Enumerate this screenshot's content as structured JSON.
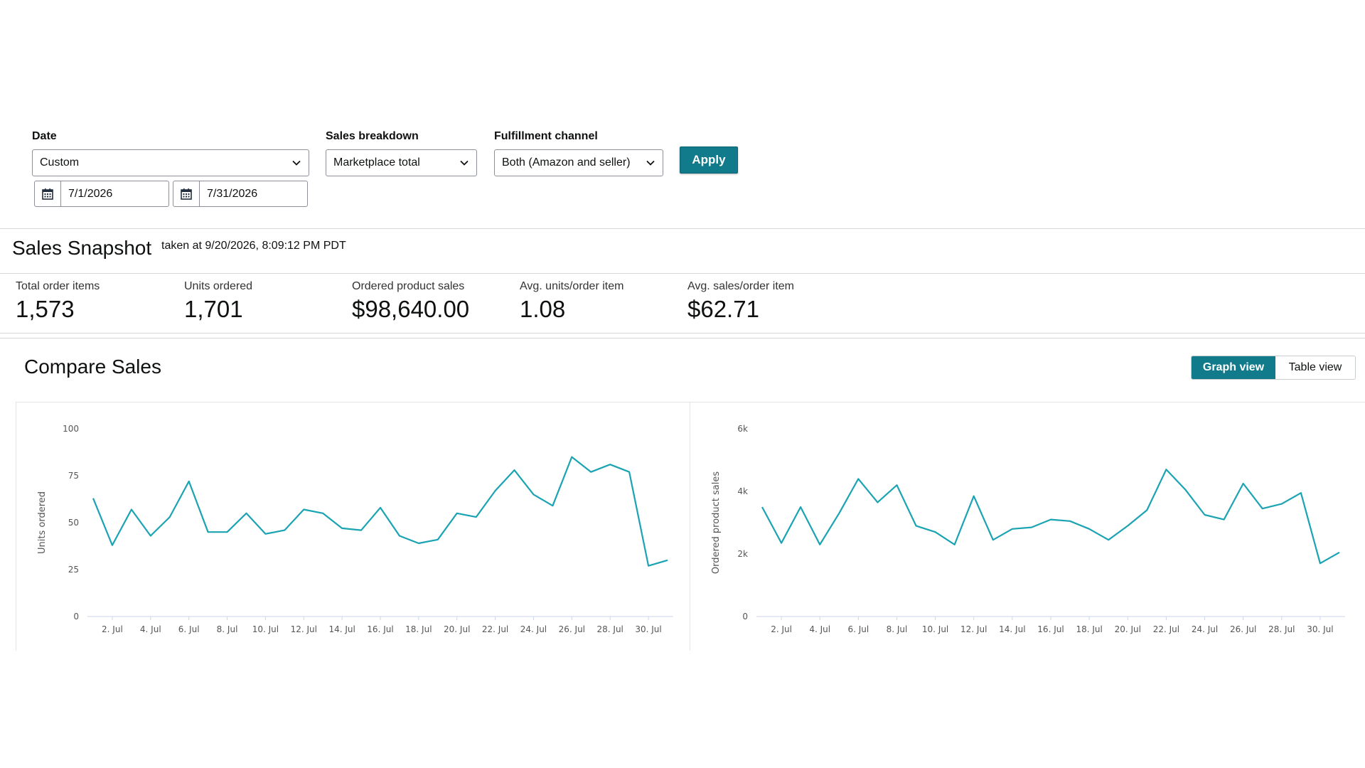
{
  "filters": {
    "date": {
      "label": "Date",
      "selected": "Custom",
      "start": "7/1/2026",
      "end": "7/31/2026"
    },
    "sales_breakdown": {
      "label": "Sales breakdown",
      "selected": "Marketplace total"
    },
    "fulfillment_channel": {
      "label": "Fulfillment channel",
      "selected": "Both (Amazon and seller)"
    },
    "apply_label": "Apply"
  },
  "snapshot": {
    "title": "Sales Snapshot",
    "taken_at": "taken at 9/20/2026, 8:09:12 PM PDT",
    "metrics": [
      {
        "label": "Total order items",
        "value": "1,573"
      },
      {
        "label": "Units ordered",
        "value": "1,701"
      },
      {
        "label": "Ordered product sales",
        "value": "$98,640.00"
      },
      {
        "label": "Avg. units/order item",
        "value": "1.08"
      },
      {
        "label": "Avg. sales/order item",
        "value": "$62.71"
      }
    ]
  },
  "compare": {
    "title": "Compare Sales",
    "views": {
      "graph": "Graph view",
      "table": "Table view",
      "active": "graph"
    }
  },
  "colors": {
    "accent": "#117a8b",
    "line": "#1aa3b3"
  },
  "chart_data": [
    {
      "type": "line",
      "ylabel": "Units ordered",
      "ylim": [
        0,
        100
      ],
      "yticks": [
        "0",
        "25",
        "50",
        "75",
        "100"
      ],
      "ytick_values": [
        0,
        25,
        50,
        75,
        100
      ],
      "x": [
        1,
        2,
        3,
        4,
        5,
        6,
        7,
        8,
        9,
        10,
        11,
        12,
        13,
        14,
        15,
        16,
        17,
        18,
        19,
        20,
        21,
        22,
        23,
        24,
        25,
        26,
        27,
        28,
        29,
        30,
        31
      ],
      "xtick_values": [
        2,
        4,
        6,
        8,
        10,
        12,
        14,
        16,
        18,
        20,
        22,
        24,
        26,
        28,
        30
      ],
      "xticks": [
        "2. Jul",
        "4. Jul",
        "6. Jul",
        "8. Jul",
        "10. Jul",
        "12. Jul",
        "14. Jul",
        "16. Jul",
        "18. Jul",
        "20. Jul",
        "22. Jul",
        "24. Jul",
        "26. Jul",
        "28. Jul",
        "30. Jul"
      ],
      "series": [
        {
          "values": [
            63,
            38,
            57,
            43,
            53,
            72,
            45,
            45,
            55,
            44,
            46,
            57,
            55,
            47,
            46,
            58,
            43,
            39,
            41,
            55,
            53,
            67,
            78,
            65,
            59,
            85,
            77,
            81,
            77,
            27,
            30
          ]
        }
      ]
    },
    {
      "type": "line",
      "ylabel": "Ordered product sales",
      "ylim": [
        0,
        6000
      ],
      "yticks": [
        "0",
        "2k",
        "4k",
        "6k"
      ],
      "ytick_values": [
        0,
        2000,
        4000,
        6000
      ],
      "x": [
        1,
        2,
        3,
        4,
        5,
        6,
        7,
        8,
        9,
        10,
        11,
        12,
        13,
        14,
        15,
        16,
        17,
        18,
        19,
        20,
        21,
        22,
        23,
        24,
        25,
        26,
        27,
        28,
        29,
        30,
        31
      ],
      "xtick_values": [
        2,
        4,
        6,
        8,
        10,
        12,
        14,
        16,
        18,
        20,
        22,
        24,
        26,
        28,
        30
      ],
      "xticks": [
        "2. Jul",
        "4. Jul",
        "6. Jul",
        "8. Jul",
        "10. Jul",
        "12. Jul",
        "14. Jul",
        "16. Jul",
        "18. Jul",
        "20. Jul",
        "22. Jul",
        "24. Jul",
        "26. Jul",
        "28. Jul",
        "30. Jul"
      ],
      "series": [
        {
          "values": [
            3500,
            2350,
            3500,
            2300,
            3300,
            4400,
            3650,
            4200,
            2900,
            2700,
            2300,
            3850,
            2450,
            2800,
            2850,
            3100,
            3050,
            2800,
            2450,
            2900,
            3400,
            4700,
            4050,
            3250,
            3100,
            4250,
            3450,
            3600,
            3950,
            1700,
            2050
          ]
        }
      ]
    }
  ]
}
